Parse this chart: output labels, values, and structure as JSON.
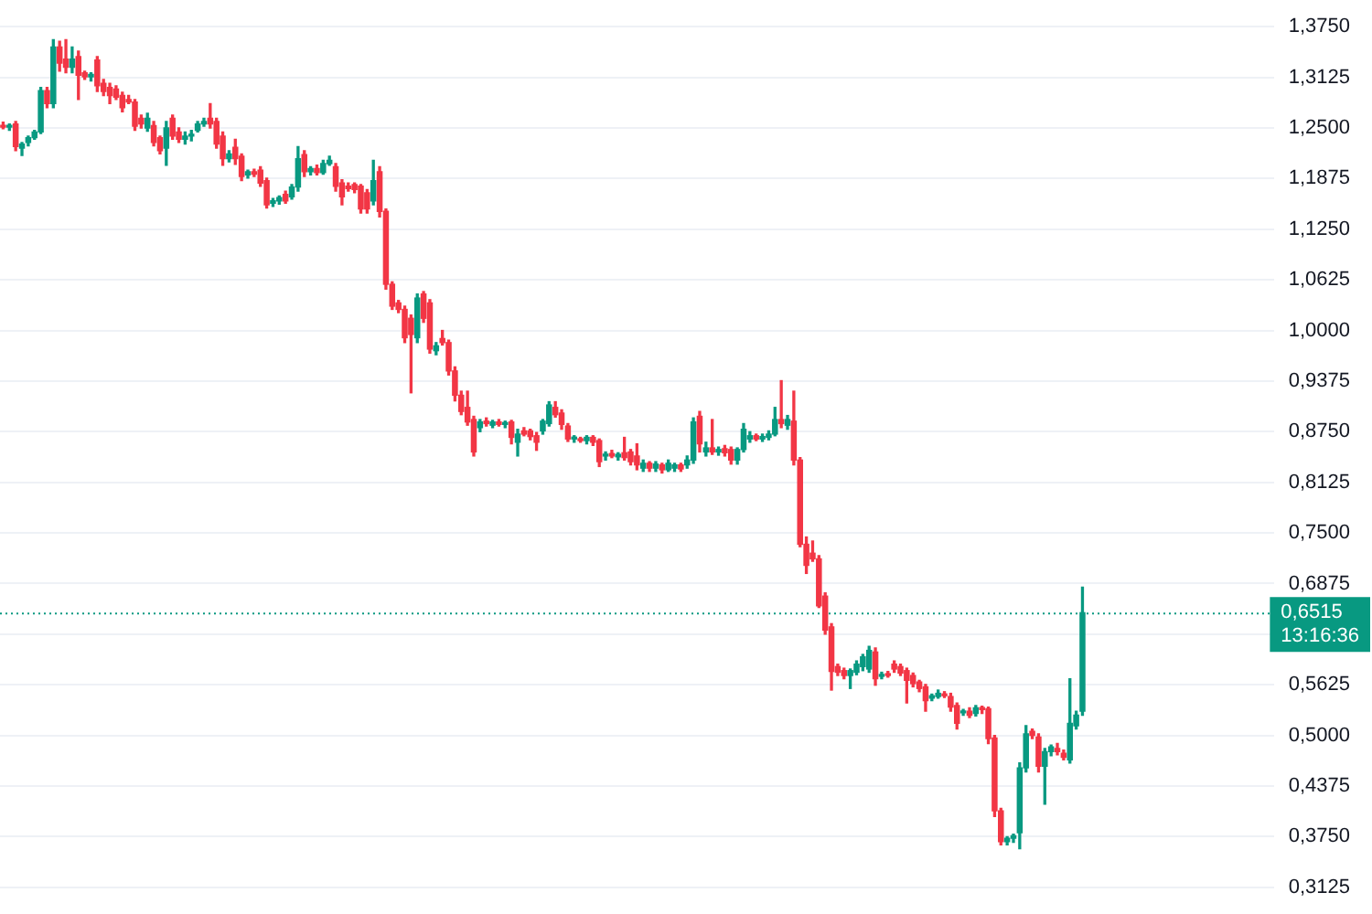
{
  "chart_data": {
    "type": "candlestick",
    "categories": [
      null,
      null,
      null,
      null,
      null,
      null,
      null,
      null,
      null,
      null,
      null,
      null,
      null,
      null,
      null,
      null,
      null,
      null,
      null,
      null,
      null,
      null,
      null,
      null,
      null,
      null,
      null,
      null,
      null,
      null,
      null,
      null,
      null,
      null,
      null,
      null,
      null,
      null,
      null,
      null,
      null,
      null,
      null,
      null,
      null,
      null,
      null,
      null,
      null,
      null,
      null,
      null,
      null,
      null,
      null,
      null,
      null,
      null,
      null,
      null,
      null,
      null,
      null,
      null,
      null,
      null,
      null,
      null,
      null,
      null,
      null,
      null,
      null,
      null,
      null,
      null,
      null,
      null,
      null,
      null,
      null,
      null,
      null,
      null,
      null,
      null,
      null,
      null,
      null,
      null,
      null,
      null,
      null,
      null,
      null,
      null,
      null,
      null,
      null,
      null,
      null,
      null,
      null,
      null,
      null,
      null,
      null,
      null,
      null,
      null,
      null,
      null,
      null,
      null,
      null,
      null,
      null,
      null,
      null,
      null,
      null,
      null,
      null,
      null,
      null,
      null,
      null,
      null,
      null,
      null,
      null,
      null,
      null,
      null,
      null,
      null,
      null,
      null,
      null,
      null,
      null,
      null,
      null,
      null,
      null,
      null,
      null,
      null,
      null,
      null,
      null,
      null,
      null,
      null,
      null,
      null,
      null,
      null,
      null,
      null,
      null,
      null,
      null,
      null,
      null,
      null,
      null,
      null,
      null,
      null,
      null,
      null,
      null,
      null,
      null,
      null,
      null,
      null,
      null,
      null,
      null,
      null,
      null,
      null,
      null,
      null,
      null,
      null,
      null,
      null,
      null,
      null,
      null,
      null,
      null,
      null,
      null,
      null,
      null,
      null,
      null,
      null,
      null
    ],
    "ohlc": [
      [
        1.253,
        1.257,
        1.249,
        1.251
      ],
      [
        1.251,
        1.255,
        1.247,
        1.253
      ],
      [
        1.255,
        1.258,
        1.222,
        1.227
      ],
      [
        1.225,
        1.232,
        1.216,
        1.23
      ],
      [
        1.232,
        1.24,
        1.228,
        1.238
      ],
      [
        1.238,
        1.247,
        1.236,
        1.245
      ],
      [
        1.245,
        1.3,
        1.243,
        1.296
      ],
      [
        1.296,
        1.3,
        1.275,
        1.28
      ],
      [
        1.28,
        1.359,
        1.275,
        1.35
      ],
      [
        1.35,
        1.357,
        1.32,
        1.33
      ],
      [
        1.335,
        1.359,
        1.318,
        1.325
      ],
      [
        1.325,
        1.35,
        1.318,
        1.335
      ],
      [
        1.338,
        1.345,
        1.285,
        1.315
      ],
      [
        1.318,
        1.32,
        1.31,
        1.313
      ],
      [
        1.313,
        1.318,
        1.308,
        1.316
      ],
      [
        1.334,
        1.338,
        1.295,
        1.302
      ],
      [
        1.305,
        1.31,
        1.29,
        1.295
      ],
      [
        1.3,
        1.305,
        1.28,
        1.29
      ],
      [
        1.298,
        1.302,
        1.285,
        1.288
      ],
      [
        1.29,
        1.294,
        1.27,
        1.275
      ],
      [
        1.285,
        1.29,
        1.28,
        1.282
      ],
      [
        1.282,
        1.285,
        1.247,
        1.252
      ],
      [
        1.262,
        1.266,
        1.25,
        1.255
      ],
      [
        1.25,
        1.268,
        1.246,
        1.262
      ],
      [
        1.253,
        1.258,
        1.228,
        1.232
      ],
      [
        1.238,
        1.24,
        1.218,
        1.222
      ],
      [
        1.225,
        1.258,
        1.204,
        1.25
      ],
      [
        1.262,
        1.266,
        1.236,
        1.24
      ],
      [
        1.245,
        1.25,
        1.232,
        1.236
      ],
      [
        1.236,
        1.245,
        1.23,
        1.24
      ],
      [
        1.24,
        1.247,
        1.234,
        1.242
      ],
      [
        1.247,
        1.258,
        1.245,
        1.255
      ],
      [
        1.255,
        1.262,
        1.252,
        1.258
      ],
      [
        1.262,
        1.28,
        1.25,
        1.255
      ],
      [
        1.258,
        1.262,
        1.225,
        1.23
      ],
      [
        1.24,
        1.245,
        1.204,
        1.212
      ],
      [
        1.212,
        1.222,
        1.208,
        1.218
      ],
      [
        1.226,
        1.236,
        1.205,
        1.212
      ],
      [
        1.215,
        1.218,
        1.185,
        1.19
      ],
      [
        1.192,
        1.198,
        1.188,
        1.196
      ],
      [
        1.196,
        1.199,
        1.19,
        1.193
      ],
      [
        1.198,
        1.202,
        1.178,
        1.182
      ],
      [
        1.185,
        1.188,
        1.151,
        1.155
      ],
      [
        1.157,
        1.163,
        1.153,
        1.16
      ],
      [
        1.16,
        1.166,
        1.156,
        1.164
      ],
      [
        1.168,
        1.172,
        1.157,
        1.16
      ],
      [
        1.165,
        1.18,
        1.162,
        1.177
      ],
      [
        1.177,
        1.227,
        1.172,
        1.212
      ],
      [
        1.217,
        1.222,
        1.19,
        1.196
      ],
      [
        1.196,
        1.202,
        1.192,
        1.2
      ],
      [
        1.2,
        1.204,
        1.192,
        1.195
      ],
      [
        1.195,
        1.21,
        1.193,
        1.206
      ],
      [
        1.206,
        1.215,
        1.204,
        1.21
      ],
      [
        1.202,
        1.206,
        1.172,
        1.178
      ],
      [
        1.182,
        1.186,
        1.155,
        1.165
      ],
      [
        1.178,
        1.182,
        1.172,
        1.175
      ],
      [
        1.18,
        1.182,
        1.17,
        1.174
      ],
      [
        1.178,
        1.18,
        1.145,
        1.15
      ],
      [
        1.17,
        1.174,
        1.145,
        1.15
      ],
      [
        1.16,
        1.21,
        1.155,
        1.185
      ],
      [
        1.196,
        1.202,
        1.14,
        1.147
      ],
      [
        1.147,
        1.15,
        1.051,
        1.057
      ],
      [
        1.057,
        1.06,
        1.026,
        1.03
      ],
      [
        1.034,
        1.037,
        1.022,
        1.026
      ],
      [
        1.026,
        1.03,
        0.985,
        0.991
      ],
      [
        1.015,
        1.019,
        0.923,
        0.995
      ],
      [
        0.991,
        1.045,
        0.985,
        1.04
      ],
      [
        1.045,
        1.048,
        1.01,
        1.015
      ],
      [
        1.034,
        1.038,
        0.972,
        0.977
      ],
      [
        0.975,
        0.985,
        0.97,
        0.981
      ],
      [
        0.99,
        1.0,
        0.982,
        0.985
      ],
      [
        0.985,
        0.988,
        0.945,
        0.95
      ],
      [
        0.95,
        0.955,
        0.913,
        0.92
      ],
      [
        0.92,
        0.925,
        0.896,
        0.9
      ],
      [
        0.905,
        0.925,
        0.883,
        0.887
      ],
      [
        0.89,
        0.894,
        0.845,
        0.85
      ],
      [
        0.88,
        0.89,
        0.875,
        0.887
      ],
      [
        0.888,
        0.892,
        0.882,
        0.885
      ],
      [
        0.883,
        0.889,
        0.88,
        0.887
      ],
      [
        0.887,
        0.89,
        0.882,
        0.884
      ],
      [
        0.884,
        0.888,
        0.88,
        0.886
      ],
      [
        0.887,
        0.889,
        0.86,
        0.868
      ],
      [
        0.862,
        0.878,
        0.845,
        0.872
      ],
      [
        0.876,
        0.88,
        0.87,
        0.872
      ],
      [
        0.876,
        0.878,
        0.865,
        0.869
      ],
      [
        0.87,
        0.874,
        0.852,
        0.862
      ],
      [
        0.876,
        0.89,
        0.872,
        0.888
      ],
      [
        0.885,
        0.912,
        0.882,
        0.908
      ],
      [
        0.905,
        0.912,
        0.893,
        0.896
      ],
      [
        0.898,
        0.902,
        0.878,
        0.884
      ],
      [
        0.882,
        0.885,
        0.863,
        0.866
      ],
      [
        0.866,
        0.87,
        0.862,
        0.867
      ],
      [
        0.866,
        0.868,
        0.862,
        0.864
      ],
      [
        0.864,
        0.87,
        0.86,
        0.868
      ],
      [
        0.868,
        0.87,
        0.858,
        0.862
      ],
      [
        0.864,
        0.866,
        0.832,
        0.838
      ],
      [
        0.845,
        0.85,
        0.84,
        0.847
      ],
      [
        0.848,
        0.852,
        0.843,
        0.845
      ],
      [
        0.844,
        0.849,
        0.84,
        0.847
      ],
      [
        0.849,
        0.868,
        0.84,
        0.843
      ],
      [
        0.85,
        0.853,
        0.834,
        0.838
      ],
      [
        0.845,
        0.86,
        0.828,
        0.834
      ],
      [
        0.83,
        0.84,
        0.826,
        0.836
      ],
      [
        0.836,
        0.838,
        0.826,
        0.83
      ],
      [
        0.83,
        0.838,
        0.826,
        0.835
      ],
      [
        0.834,
        0.836,
        0.824,
        0.828
      ],
      [
        0.828,
        0.84,
        0.826,
        0.836
      ],
      [
        0.83,
        0.836,
        0.826,
        0.834
      ],
      [
        0.834,
        0.836,
        0.826,
        0.829
      ],
      [
        0.834,
        0.845,
        0.83,
        0.84
      ],
      [
        0.84,
        0.892,
        0.836,
        0.887
      ],
      [
        0.894,
        0.9,
        0.85,
        0.86
      ],
      [
        0.85,
        0.862,
        0.845,
        0.855
      ],
      [
        0.855,
        0.89,
        0.847,
        0.85
      ],
      [
        0.85,
        0.856,
        0.846,
        0.853
      ],
      [
        0.854,
        0.858,
        0.845,
        0.849
      ],
      [
        0.853,
        0.856,
        0.835,
        0.84
      ],
      [
        0.84,
        0.855,
        0.835,
        0.853
      ],
      [
        0.853,
        0.885,
        0.85,
        0.878
      ],
      [
        0.866,
        0.875,
        0.862,
        0.87
      ],
      [
        0.87,
        0.872,
        0.864,
        0.866
      ],
      [
        0.866,
        0.872,
        0.863,
        0.869
      ],
      [
        0.868,
        0.876,
        0.865,
        0.872
      ],
      [
        0.872,
        0.905,
        0.87,
        0.89
      ],
      [
        0.89,
        0.938,
        0.88,
        0.885
      ],
      [
        0.883,
        0.895,
        0.878,
        0.89
      ],
      [
        0.888,
        0.925,
        0.834,
        0.84
      ],
      [
        0.84,
        0.843,
        0.733,
        0.736
      ],
      [
        0.736,
        0.745,
        0.7,
        0.71
      ],
      [
        0.725,
        0.74,
        0.715,
        0.718
      ],
      [
        0.718,
        0.722,
        0.658,
        0.66
      ],
      [
        0.672,
        0.676,
        0.625,
        0.63
      ],
      [
        0.634,
        0.638,
        0.556,
        0.579
      ],
      [
        0.585,
        0.588,
        0.574,
        0.578
      ],
      [
        0.58,
        0.583,
        0.57,
        0.574
      ],
      [
        0.574,
        0.582,
        0.558,
        0.58
      ],
      [
        0.578,
        0.592,
        0.575,
        0.588
      ],
      [
        0.585,
        0.6,
        0.58,
        0.597
      ],
      [
        0.582,
        0.61,
        0.578,
        0.605
      ],
      [
        0.603,
        0.608,
        0.562,
        0.57
      ],
      [
        0.573,
        0.578,
        0.57,
        0.575
      ],
      [
        0.576,
        0.579,
        0.572,
        0.574
      ],
      [
        0.588,
        0.592,
        0.578,
        0.582
      ],
      [
        0.585,
        0.588,
        0.574,
        0.577
      ],
      [
        0.58,
        0.583,
        0.54,
        0.568
      ],
      [
        0.574,
        0.577,
        0.56,
        0.564
      ],
      [
        0.566,
        0.568,
        0.554,
        0.558
      ],
      [
        0.56,
        0.563,
        0.53,
        0.543
      ],
      [
        0.546,
        0.551,
        0.543,
        0.549
      ],
      [
        0.548,
        0.556,
        0.546,
        0.552
      ],
      [
        0.551,
        0.554,
        0.547,
        0.549
      ],
      [
        0.548,
        0.552,
        0.53,
        0.535
      ],
      [
        0.537,
        0.54,
        0.508,
        0.515
      ],
      [
        0.528,
        0.532,
        0.525,
        0.53
      ],
      [
        0.53,
        0.534,
        0.522,
        0.525
      ],
      [
        0.527,
        0.537,
        0.524,
        0.534
      ],
      [
        0.534,
        0.536,
        0.527,
        0.532
      ],
      [
        0.533,
        0.535,
        0.49,
        0.496
      ],
      [
        0.497,
        0.5,
        0.4,
        0.407
      ],
      [
        0.407,
        0.41,
        0.365,
        0.369
      ],
      [
        0.369,
        0.375,
        0.365,
        0.373
      ],
      [
        0.373,
        0.378,
        0.368,
        0.376
      ],
      [
        0.38,
        0.466,
        0.36,
        0.46
      ],
      [
        0.46,
        0.512,
        0.455,
        0.502
      ],
      [
        0.505,
        0.508,
        0.496,
        0.5
      ],
      [
        0.498,
        0.502,
        0.455,
        0.462
      ],
      [
        0.462,
        0.484,
        0.415,
        0.48
      ],
      [
        0.48,
        0.488,
        0.475,
        0.486
      ],
      [
        0.484,
        0.49,
        0.476,
        0.48
      ],
      [
        0.478,
        0.482,
        0.47,
        0.473
      ],
      [
        0.47,
        0.57,
        0.466,
        0.515
      ],
      [
        0.512,
        0.53,
        0.508,
        0.525
      ],
      [
        0.53,
        0.683,
        0.525,
        0.6515
      ],
      null,
      null,
      null,
      null,
      null,
      null,
      null,
      null,
      null,
      null,
      null,
      null,
      null,
      null,
      null,
      null,
      null,
      null,
      null,
      null,
      null,
      null,
      null,
      null,
      null,
      null,
      null,
      null,
      null,
      null
    ],
    "colors": [
      "#f23645",
      "#089981",
      "#f23645",
      "#089981",
      "#089981",
      "#089981",
      "#089981",
      "#f23645",
      "#089981",
      "#f23645",
      "#f23645",
      "#089981",
      "#f23645",
      "#f23645",
      "#089981",
      "#f23645",
      "#f23645",
      "#f23645",
      "#f23645",
      "#f23645",
      "#f23645",
      "#f23645",
      "#f23645",
      "#089981",
      "#f23645",
      "#f23645",
      "#089981",
      "#f23645",
      "#f23645",
      "#089981",
      "#089981",
      "#089981",
      "#089981",
      "#f23645",
      "#f23645",
      "#f23645",
      "#089981",
      "#f23645",
      "#f23645",
      "#089981",
      "#f23645",
      "#f23645",
      "#f23645",
      "#089981",
      "#089981",
      "#f23645",
      "#089981",
      "#089981",
      "#f23645",
      "#089981",
      "#f23645",
      "#089981",
      "#089981",
      "#f23645",
      "#f23645",
      "#f23645",
      "#f23645",
      "#f23645",
      "#f23645",
      "#089981",
      "#f23645",
      "#f23645",
      "#f23645",
      "#f23645",
      "#f23645",
      "#f23645",
      "#089981",
      "#f23645",
      "#f23645",
      "#089981",
      "#f23645",
      "#f23645",
      "#f23645",
      "#f23645",
      "#f23645",
      "#f23645",
      "#089981",
      "#f23645",
      "#089981",
      "#f23645",
      "#089981",
      "#f23645",
      "#089981",
      "#f23645",
      "#f23645",
      "#f23645",
      "#089981",
      "#089981",
      "#f23645",
      "#f23645",
      "#f23645",
      "#089981",
      "#f23645",
      "#089981",
      "#f23645",
      "#f23645",
      "#089981",
      "#f23645",
      "#089981",
      "#f23645",
      "#f23645",
      "#f23645",
      "#089981",
      "#f23645",
      "#089981",
      "#f23645",
      "#089981",
      "#089981",
      "#f23645",
      "#089981",
      "#089981",
      "#f23645",
      "#089981",
      "#f23645",
      "#089981",
      "#f23645",
      "#f23645",
      "#089981",
      "#089981",
      "#089981",
      "#f23645",
      "#089981",
      "#089981",
      "#089981",
      "#f23645",
      "#089981",
      "#f23645",
      "#f23645",
      "#f23645",
      "#f23645",
      "#f23645",
      "#f23645",
      "#f23645",
      "#f23645",
      "#f23645",
      "#089981",
      "#089981",
      "#089981",
      "#089981",
      "#f23645",
      "#089981",
      "#f23645",
      "#f23645",
      "#f23645",
      "#f23645",
      "#f23645",
      "#f23645",
      "#f23645",
      "#089981",
      "#089981",
      "#f23645",
      "#f23645",
      "#f23645",
      "#089981",
      "#f23645",
      "#089981",
      "#f23645",
      "#f23645",
      "#f23645",
      "#f23645",
      "#089981",
      "#089981",
      "#089981",
      "#089981",
      "#f23645",
      "#f23645",
      "#089981",
      "#089981",
      "#f23645",
      "#f23645",
      "#089981",
      "#089981",
      "#089981",
      null,
      null,
      null,
      null,
      null,
      null,
      null,
      null,
      null,
      null,
      null,
      null,
      null,
      null,
      null,
      null,
      null,
      null,
      null,
      null,
      null,
      null,
      null,
      null,
      null,
      null,
      null,
      null,
      null,
      null
    ],
    "ylim": [
      0.3125,
      1.375
    ],
    "yticks": [
      {
        "value": 0.3125,
        "label": "0,3125"
      },
      {
        "value": 0.375,
        "label": "0,3750"
      },
      {
        "value": 0.4375,
        "label": "0,4375"
      },
      {
        "value": 0.5,
        "label": "0,5000"
      },
      {
        "value": 0.5625,
        "label": "0,5625"
      },
      {
        "value": 0.625,
        "label": null
      },
      {
        "value": 0.6875,
        "label": "0,6875"
      },
      {
        "value": 0.75,
        "label": "0,7500"
      },
      {
        "value": 0.8125,
        "label": "0,8125"
      },
      {
        "value": 0.875,
        "label": "0,8750"
      },
      {
        "value": 0.9375,
        "label": "0,9375"
      },
      {
        "value": 1.0,
        "label": "1,0000"
      },
      {
        "value": 1.0625,
        "label": "1,0625"
      },
      {
        "value": 1.125,
        "label": "1,1250"
      },
      {
        "value": 1.1875,
        "label": "1,1875"
      },
      {
        "value": 1.25,
        "label": "1,2500"
      },
      {
        "value": 1.3125,
        "label": "1,3125"
      },
      {
        "value": 1.375,
        "label": "1,3750"
      }
    ],
    "grid": "y",
    "legend": false,
    "tick_labels": "y",
    "ref_lines": [
      {
        "axis": "y",
        "value": 0.6515,
        "label": "0,6515",
        "color": "#089981",
        "line_style": "dotted"
      }
    ],
    "annotations": [
      "13:16:36"
    ]
  }
}
